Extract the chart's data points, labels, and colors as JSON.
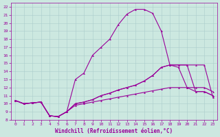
{
  "bg_color": "#cce8e0",
  "grid_color": "#aacccc",
  "line_color": "#990099",
  "xlabel": "Windchill (Refroidissement éolien,°C)",
  "xlim": [
    -0.5,
    23.5
  ],
  "ylim": [
    8,
    22.5
  ],
  "xticks": [
    0,
    1,
    2,
    3,
    4,
    5,
    6,
    7,
    8,
    9,
    10,
    11,
    12,
    13,
    14,
    15,
    16,
    17,
    18,
    19,
    20,
    21,
    22,
    23
  ],
  "yticks": [
    8,
    9,
    10,
    11,
    12,
    13,
    14,
    15,
    16,
    17,
    18,
    19,
    20,
    21,
    22
  ],
  "line_big_x": [
    0,
    1,
    2,
    3,
    4,
    5,
    6,
    7,
    8,
    9,
    10,
    11,
    12,
    13,
    14,
    15,
    16,
    17,
    18,
    19,
    20,
    21,
    22,
    23
  ],
  "line_big_y": [
    10.4,
    10.0,
    10.1,
    10.2,
    8.5,
    8.4,
    9.0,
    13.0,
    13.8,
    16.0,
    17.0,
    18.0,
    19.8,
    21.1,
    21.7,
    21.7,
    21.2,
    19.0,
    14.8,
    14.5,
    12.0,
    11.5,
    11.5,
    11.0
  ],
  "line_mid1_x": [
    0,
    1,
    2,
    3,
    4,
    5,
    6,
    7,
    8,
    9,
    10,
    11,
    12,
    13,
    14,
    15,
    16,
    17,
    18,
    19,
    20,
    21,
    22,
    23
  ],
  "line_mid1_y": [
    10.4,
    10.0,
    10.1,
    10.2,
    8.5,
    8.4,
    9.0,
    10.0,
    10.2,
    10.5,
    11.0,
    11.3,
    11.7,
    12.0,
    12.3,
    12.8,
    13.5,
    14.5,
    14.8,
    14.8,
    14.8,
    11.5,
    11.5,
    11.0
  ],
  "line_mid2_x": [
    0,
    1,
    2,
    3,
    4,
    5,
    6,
    7,
    8,
    9,
    10,
    11,
    12,
    13,
    14,
    15,
    16,
    17,
    18,
    19,
    20,
    21,
    22,
    23
  ],
  "line_mid2_y": [
    10.4,
    10.0,
    10.1,
    10.2,
    8.5,
    8.4,
    9.0,
    10.0,
    10.2,
    10.5,
    11.0,
    11.3,
    11.7,
    12.0,
    12.3,
    12.8,
    13.5,
    14.5,
    14.8,
    14.8,
    14.8,
    14.8,
    14.8,
    10.8
  ],
  "line_flat_x": [
    0,
    1,
    2,
    3,
    4,
    5,
    6,
    7,
    8,
    9,
    10,
    11,
    12,
    13,
    14,
    15,
    16,
    17,
    18,
    19,
    20,
    21,
    22,
    23
  ],
  "line_flat_y": [
    10.4,
    10.0,
    10.1,
    10.2,
    8.5,
    8.4,
    9.0,
    9.8,
    10.0,
    10.2,
    10.4,
    10.6,
    10.8,
    11.0,
    11.2,
    11.4,
    11.6,
    11.8,
    12.0,
    12.0,
    12.0,
    12.0,
    12.0,
    11.5
  ],
  "marker": "^",
  "markersize": 2,
  "linewidth": 0.8
}
